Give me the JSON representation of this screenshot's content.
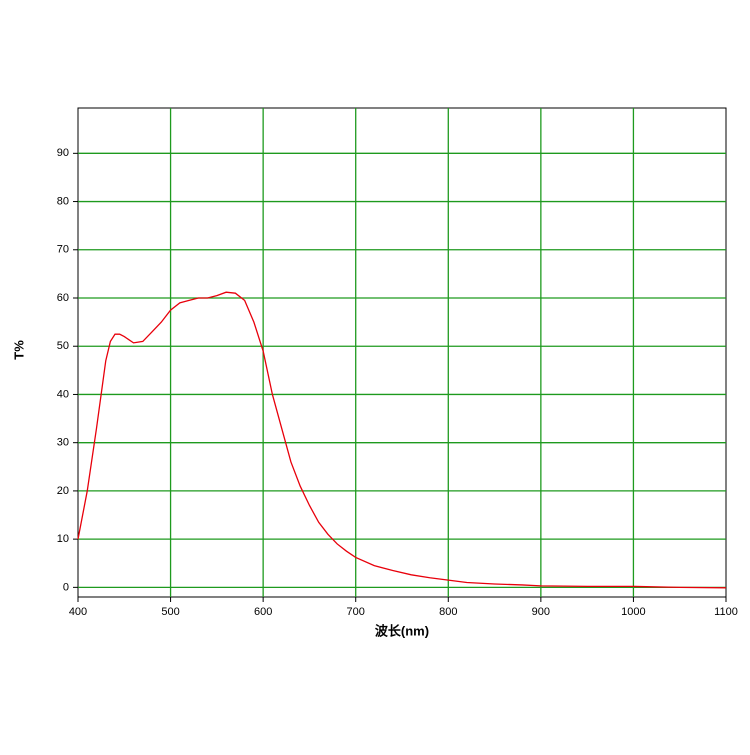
{
  "chart_data": {
    "type": "line",
    "xlabel": "波长(nm)",
    "ylabel": "T%",
    "x": [
      400,
      410,
      420,
      425,
      430,
      435,
      440,
      445,
      450,
      460,
      470,
      480,
      490,
      500,
      510,
      520,
      530,
      540,
      550,
      560,
      570,
      580,
      590,
      600,
      610,
      620,
      630,
      640,
      650,
      660,
      670,
      680,
      690,
      700,
      720,
      740,
      760,
      780,
      800,
      820,
      850,
      880,
      900,
      950,
      1000,
      1050,
      1100
    ],
    "series": [
      {
        "name": "T%",
        "color": "#e8000b",
        "values": [
          10,
          20,
          33,
          40,
          47,
          51,
          52.5,
          52.5,
          52,
          50.7,
          51,
          53,
          55,
          57.5,
          59,
          59.5,
          60,
          60,
          60.5,
          61.2,
          61,
          59.5,
          55,
          49,
          40,
          33,
          26,
          21,
          17,
          13.5,
          11,
          9,
          7.5,
          6.2,
          4.5,
          3.5,
          2.6,
          2,
          1.5,
          1,
          0.7,
          0.5,
          0.3,
          0.2,
          0.2,
          0,
          -0.1
        ]
      }
    ],
    "xlim": [
      400,
      1100
    ],
    "xticks": [
      400,
      500,
      600,
      700,
      800,
      900,
      1000,
      1100
    ],
    "ylim": [
      -2,
      99.4
    ],
    "yticks": [
      0,
      10,
      20,
      30,
      40,
      50,
      60,
      70,
      80,
      90
    ],
    "grid": true,
    "grid_color": "#1e9a1e"
  }
}
